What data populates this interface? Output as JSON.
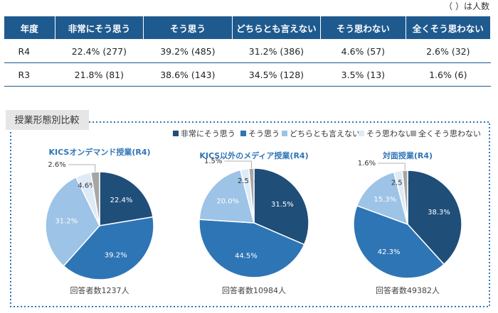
{
  "note": "（ ）は人数",
  "table": {
    "header": [
      "年度",
      "非常にそう思う",
      "そう思う",
      "どちらとも言えない",
      "そう思わない",
      "全くそう思わない"
    ],
    "rows": [
      [
        "R4",
        "22.4% (277)",
        "39.2% (485)",
        "31.2% (386)",
        "4.6% (57)",
        "2.6% (32)"
      ],
      [
        "R3",
        "21.8% (81)",
        "38.6% (143)",
        "34.5% (128)",
        "3.5% (13)",
        "1.6% (6)"
      ]
    ]
  },
  "section_title": "授業形態別比較",
  "legend": {
    "categories": [
      "非常にそう思う",
      "そう思う",
      "どちらとも言えない",
      "そう思わない",
      "全くそう思わない"
    ],
    "colors": [
      "#1f4e79",
      "#2e75b6",
      "#9dc3e6",
      "#deebf7",
      "#a6a6a6"
    ]
  },
  "chart_data": [
    {
      "type": "pie",
      "title": "KICSオンデマンド授業(R4)",
      "values": [
        22.4,
        39.2,
        31.2,
        4.6,
        2.6
      ],
      "value_labels": [
        "22.4%",
        "39.2%",
        "31.2%",
        "4.6%",
        "2.6%"
      ],
      "footnote": "回答者数1237人"
    },
    {
      "type": "pie",
      "title": "KICS以外のメディア授業(R4)",
      "values": [
        31.5,
        44.5,
        20.0,
        2.5,
        1.5
      ],
      "value_labels": [
        "31.5%",
        "44.5%",
        "20.0%",
        "2.5%",
        "1.5%"
      ],
      "footnote": "回答者数10984人"
    },
    {
      "type": "pie",
      "title": "対面授業(R4)",
      "values": [
        38.3,
        42.3,
        15.3,
        2.5,
        1.6
      ],
      "value_labels": [
        "38.3%",
        "42.3%",
        "15.3%",
        "2.5%",
        "1.6%"
      ],
      "footnote": "回答者数49382人"
    }
  ]
}
